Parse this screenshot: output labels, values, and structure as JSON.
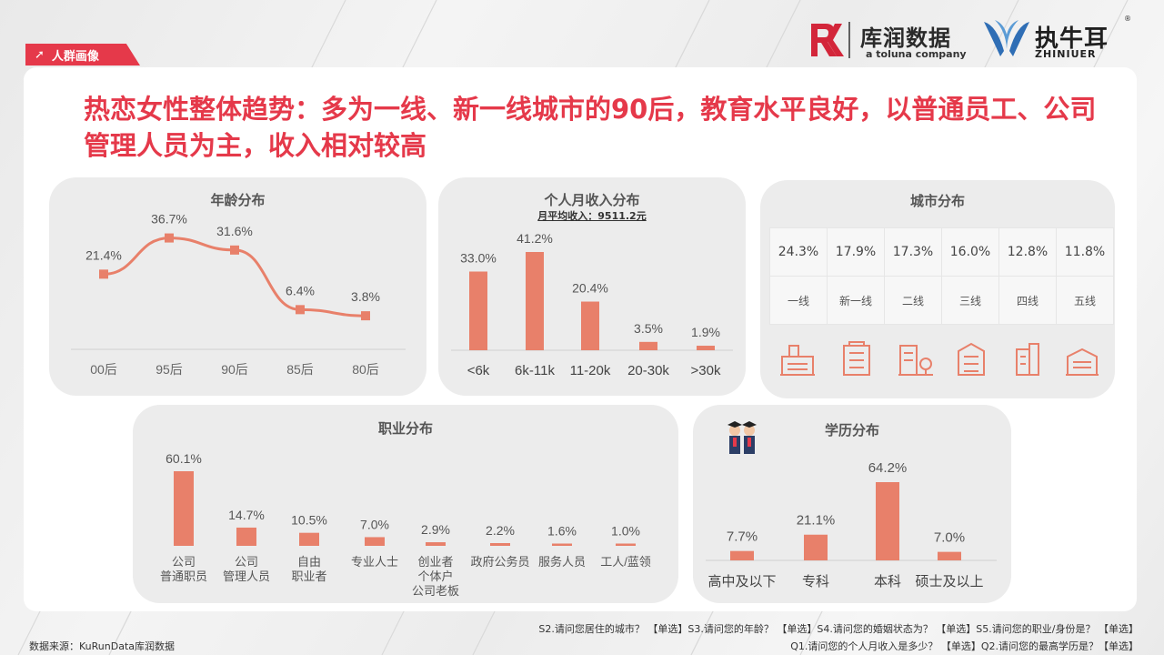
{
  "header": {
    "tag": "人群画像",
    "logo_brand": "库润数据",
    "logo_sub": "a toluna company",
    "logo_brand2": "ZHINIUER",
    "logo_brand2_cn": "执牛耳"
  },
  "title": "热恋女性整体趋势：多为一线、新一线城市的90后，教育水平良好，以普通员工、公司管理人员为主，收入相对较高",
  "panels": {
    "age": {
      "title": "年龄分布"
    },
    "income": {
      "title": "个人月收入分布",
      "subtitle": "月平均收入：9511.2元"
    },
    "city": {
      "title": "城市分布"
    },
    "job": {
      "title": "职业分布"
    },
    "edu": {
      "title": "学历分布"
    }
  },
  "chart_data": [
    {
      "type": "line",
      "title": "年龄分布",
      "categories": [
        "00后",
        "95后",
        "90后",
        "85后",
        "80后"
      ],
      "values": [
        21.4,
        36.7,
        31.6,
        6.4,
        3.8
      ],
      "labels": [
        "21.4%",
        "36.7%",
        "31.6%",
        "6.4%",
        "3.8%"
      ]
    },
    {
      "type": "bar",
      "title": "个人月收入分布",
      "subtitle": "月平均收入：9511.2元",
      "categories": [
        "<6k",
        "6k-11k",
        "11-20k",
        "20-30k",
        ">30k"
      ],
      "values": [
        33.0,
        41.2,
        20.4,
        3.5,
        1.9
      ],
      "labels": [
        "33.0%",
        "41.2%",
        "20.4%",
        "3.5%",
        "1.9%"
      ]
    },
    {
      "type": "table",
      "title": "城市分布",
      "categories": [
        "一线",
        "新一线",
        "二线",
        "三线",
        "四线",
        "五线"
      ],
      "values": [
        24.3,
        17.9,
        17.3,
        16.0,
        12.8,
        11.8
      ],
      "labels": [
        "24.3%",
        "17.9%",
        "17.3%",
        "16.0%",
        "12.8%",
        "11.8%"
      ]
    },
    {
      "type": "bar",
      "title": "职业分布",
      "categories": [
        [
          "公司",
          "普通职员"
        ],
        [
          "公司",
          "管理人员"
        ],
        [
          "自由",
          "职业者"
        ],
        [
          "专业人士"
        ],
        [
          "创业者",
          "个体户",
          "公司老板"
        ],
        [
          "政府公务员"
        ],
        [
          "服务人员"
        ],
        [
          "工人/蓝领"
        ]
      ],
      "values": [
        60.1,
        14.7,
        10.5,
        7.0,
        2.9,
        2.2,
        1.6,
        1.0
      ],
      "labels": [
        "60.1%",
        "14.7%",
        "10.5%",
        "7.0%",
        "2.9%",
        "2.2%",
        "1.6%",
        "1.0%"
      ]
    },
    {
      "type": "bar",
      "title": "学历分布",
      "categories": [
        "高中及以下",
        "专科",
        "本科",
        "硕士及以上"
      ],
      "values": [
        7.7,
        21.1,
        64.2,
        7.0
      ],
      "labels": [
        "7.7%",
        "21.1%",
        "64.2%",
        "7.0%"
      ]
    }
  ],
  "colors": {
    "accent": "#e5394a",
    "bar": "#e8806a",
    "line": "#e8806a"
  },
  "city_icons": [
    "city-skyline-icon",
    "office-building-icon",
    "building-tree-icon",
    "tower-block-icon",
    "skyscraper-icon",
    "low-building-icon"
  ],
  "footer": {
    "source": "数据来源：KuRunData库润数据",
    "q1": "S2.请问您居住的城市？ 【单选】S3.请问您的年龄？ 【单选】S4.请问您的婚姻状态为？ 【单选】S5.请问您的职业/身份是？ 【单选】",
    "q2": "Q1.请问您的个人月收入是多少？ 【单选】Q2.请问您的最高学历是？【单选】"
  }
}
